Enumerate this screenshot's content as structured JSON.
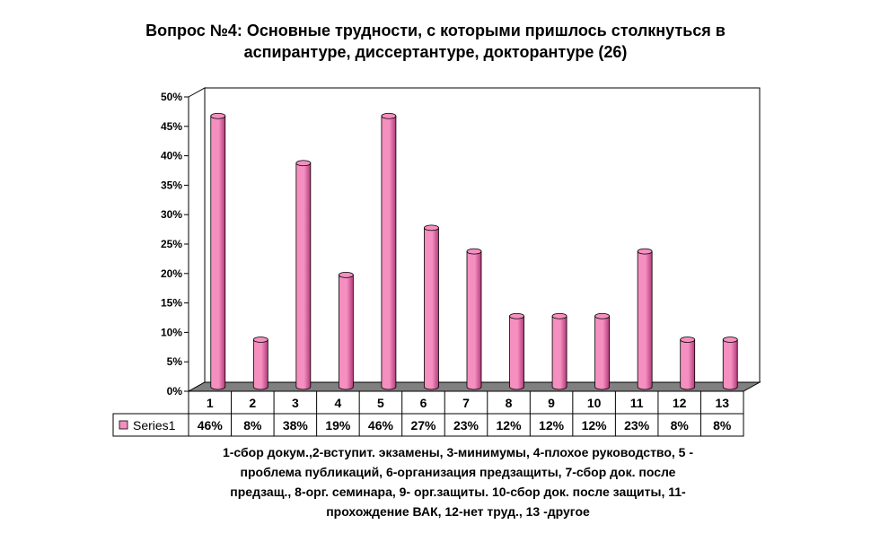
{
  "title_lines": [
    "Вопрос №4: Основные трудности, с которыми пришлось столкнуться в",
    "аспирантуре, диссертантуре, докторантуре (26)"
  ],
  "chart_data": {
    "type": "bar",
    "categories": [
      "1",
      "2",
      "3",
      "4",
      "5",
      "6",
      "7",
      "8",
      "9",
      "10",
      "11",
      "12",
      "13"
    ],
    "series": [
      {
        "name": "Series1",
        "values": [
          46,
          8,
          38,
          19,
          46,
          27,
          23,
          12,
          12,
          12,
          23,
          8,
          8
        ],
        "labels": [
          "46%",
          "8%",
          "38%",
          "19%",
          "46%",
          "27%",
          "23%",
          "12%",
          "12%",
          "12%",
          "23%",
          "8%",
          "8%"
        ]
      }
    ],
    "y_ticks": [
      "0%",
      "5%",
      "10%",
      "15%",
      "20%",
      "25%",
      "30%",
      "35%",
      "40%",
      "45%",
      "50%"
    ],
    "ylim": [
      0,
      50
    ],
    "grid": false,
    "legend": "data-table",
    "bar_color": "#f48fc0",
    "bar_dark_color": "#b43a7a",
    "floor_color": "#808080"
  },
  "caption_lines": [
    "1-сбор докум.,2-вступит. экзамены, 3-минимумы, 4-плохое руководство, 5 -",
    "проблема публикаций, 6-организация предзащиты, 7-сбор док. после",
    "предзащ., 8-орг. семинара, 9- орг.защиты. 10-сбор док. после защиты, 11-",
    "прохождение ВАК, 12-нет труд., 13 -другое"
  ]
}
